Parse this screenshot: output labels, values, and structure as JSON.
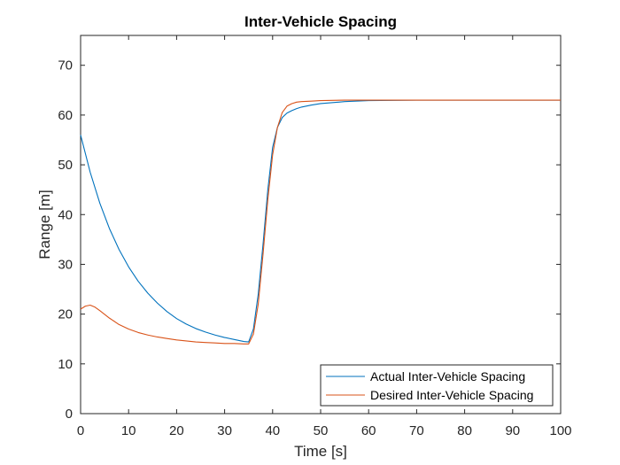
{
  "chart_data": {
    "type": "line",
    "title": "Inter-Vehicle Spacing",
    "xlabel": "Time [s]",
    "ylabel": "Range [m]",
    "xlim": [
      0,
      100
    ],
    "ylim": [
      0,
      76
    ],
    "xticks": [
      0,
      10,
      20,
      30,
      40,
      50,
      60,
      70,
      80,
      90,
      100
    ],
    "yticks": [
      0,
      10,
      20,
      30,
      40,
      50,
      60,
      70
    ],
    "grid": false,
    "legend_position": "bottom-right",
    "series": [
      {
        "name": "Actual Inter-Vehicle Spacing",
        "color": "#0072BD",
        "x": [
          0,
          2,
          4,
          6,
          8,
          10,
          12,
          14,
          16,
          18,
          20,
          22,
          24,
          26,
          28,
          30,
          32,
          34,
          35,
          36,
          37,
          38,
          39,
          40,
          41,
          42,
          43,
          44,
          45,
          46,
          48,
          50,
          55,
          60,
          70,
          80,
          90,
          100
        ],
        "y": [
          56,
          48.5,
          42.3,
          37.2,
          33,
          29.5,
          26.6,
          24.2,
          22.2,
          20.5,
          19.1,
          18,
          17.1,
          16.4,
          15.8,
          15.3,
          14.9,
          14.5,
          14.4,
          17,
          24,
          34,
          45,
          53.5,
          57.5,
          59.5,
          60.4,
          60.9,
          61.3,
          61.6,
          62,
          62.3,
          62.7,
          62.9,
          63,
          63,
          63,
          63
        ]
      },
      {
        "name": "Desired Inter-Vehicle Spacing",
        "color": "#D95319",
        "x": [
          0,
          1,
          2,
          3,
          4,
          6,
          8,
          10,
          12,
          14,
          16,
          18,
          20,
          22,
          24,
          26,
          28,
          30,
          32,
          34,
          35,
          36,
          37,
          38,
          39,
          40,
          41,
          42,
          43,
          44,
          45,
          46,
          48,
          50,
          55,
          60,
          70,
          80,
          90,
          100
        ],
        "y": [
          21,
          21.6,
          21.8,
          21.4,
          20.7,
          19.2,
          17.9,
          17,
          16.3,
          15.8,
          15.4,
          15.1,
          14.8,
          14.6,
          14.4,
          14.3,
          14.2,
          14.1,
          14.1,
          14,
          14,
          16,
          22,
          32,
          43,
          52,
          57.5,
          60.5,
          61.8,
          62.3,
          62.6,
          62.7,
          62.8,
          62.9,
          63,
          63,
          63,
          63,
          63,
          63
        ]
      }
    ]
  }
}
